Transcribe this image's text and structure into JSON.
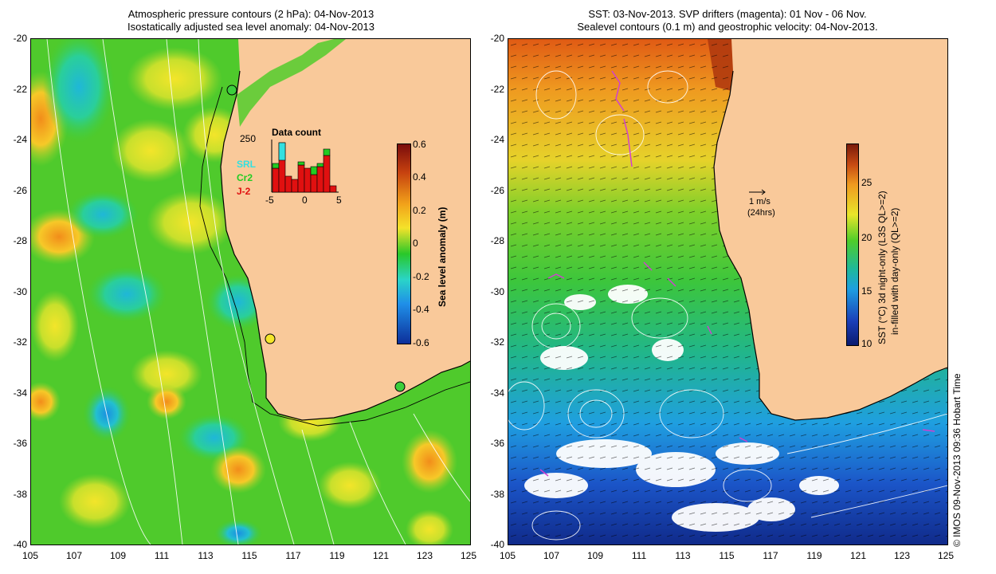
{
  "left_panel": {
    "title_line1": "Atmospheric pressure contours (2 hPa): 04-Nov-2013",
    "title_line2": "Isostatically adjusted sea level anomaly: 04-Nov-2013",
    "colorbar_label": "Sea level anomaly (m)",
    "colorbar_ticks": [
      "0.6",
      "0.4",
      "0.2",
      "0",
      "-0.2",
      "-0.4",
      "-0.6"
    ],
    "colorbar_colors": [
      "#7a0c0c",
      "#c6410f",
      "#f2a21a",
      "#f4e22a",
      "#29c829",
      "#2ad4c8",
      "#1f8fe8",
      "#0d2f9a"
    ],
    "histogram": {
      "title": "Data count",
      "max_label": "250",
      "x_ticks": [
        "-5",
        "0",
        "5"
      ],
      "legend": [
        {
          "label": "SRL",
          "color": "#33e0e0"
        },
        {
          "label": "Cr2",
          "color": "#22cc22"
        },
        {
          "label": "J-2",
          "color": "#e01010"
        }
      ]
    }
  },
  "right_panel": {
    "title_line1": "SST: 03-Nov-2013. SVP drifters (magenta): 01 Nov - 06 Nov.",
    "title_line2": "Sealevel contours (0.1 m) and geostrophic velocity: 04-Nov-2013.",
    "colorbar_label_line1": "SST (°C) 3d night-only (L3S QL>=2)",
    "colorbar_label_line2": "in-filled with day-only (QL>=2)",
    "colorbar_ticks": [
      "25",
      "20",
      "15",
      "10"
    ],
    "colorbar_colors": [
      "#7a1a0a",
      "#c64a12",
      "#ef9a20",
      "#e9e62a",
      "#4fcd2a",
      "#1fb89a",
      "#1e9fe0",
      "#1b3fb8",
      "#0a1a70"
    ],
    "velocity_scale": {
      "line1": "1 m/s",
      "line2": "(24hrs)"
    }
  },
  "axes": {
    "y_ticks": [
      "-20",
      "-22",
      "-24",
      "-26",
      "-28",
      "-30",
      "-32",
      "-34",
      "-36",
      "-38",
      "-40"
    ],
    "x_ticks": [
      "105",
      "107",
      "109",
      "111",
      "113",
      "115",
      "117",
      "119",
      "121",
      "123",
      "125"
    ]
  },
  "credit": "© IMOS 09-Nov-2013 09:36 Hobart Time",
  "colors": {
    "land": "#f9c99a",
    "ocean_green": "#52cc2c",
    "coast": "#000000",
    "contour": "#ffffff",
    "drifter": "#d040d0"
  }
}
